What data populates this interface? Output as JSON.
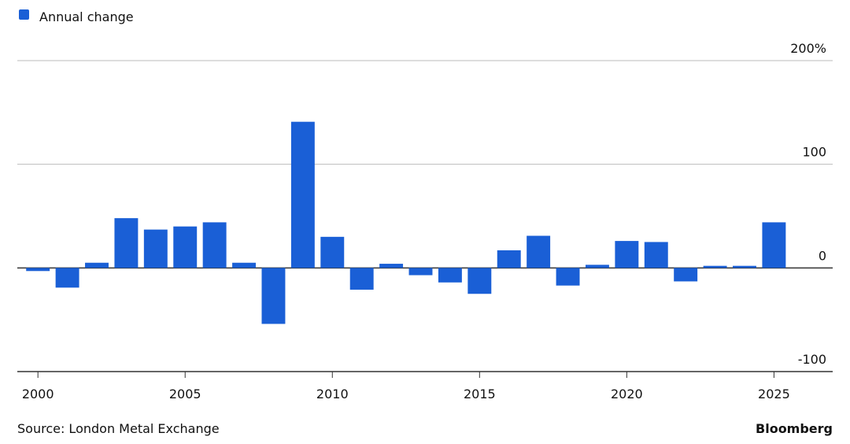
{
  "chart_data": {
    "type": "bar",
    "legend_label": "Annual change",
    "source": "Source: London Metal Exchange",
    "brand": "Bloomberg",
    "x": [
      2000,
      2001,
      2002,
      2003,
      2004,
      2005,
      2006,
      2007,
      2008,
      2009,
      2010,
      2011,
      2012,
      2013,
      2014,
      2015,
      2016,
      2017,
      2018,
      2019,
      2020,
      2021,
      2022,
      2023,
      2024,
      2025
    ],
    "values": [
      -3,
      -19,
      5,
      48,
      37,
      40,
      44,
      5,
      -54,
      141,
      30,
      -21,
      4,
      -7,
      -14,
      -25,
      17,
      31,
      -17,
      3,
      26,
      25,
      -13,
      2,
      2,
      44
    ],
    "color": "#1a5fd6",
    "xlim": [
      1999.3,
      2026.7
    ],
    "xticks": [
      2000,
      2005,
      2010,
      2015,
      2020,
      2025
    ],
    "ylim": [
      -100,
      200
    ],
    "yticks": [
      -100,
      0,
      100,
      {
        "value": 200,
        "label": "200%"
      }
    ],
    "grid": true
  }
}
